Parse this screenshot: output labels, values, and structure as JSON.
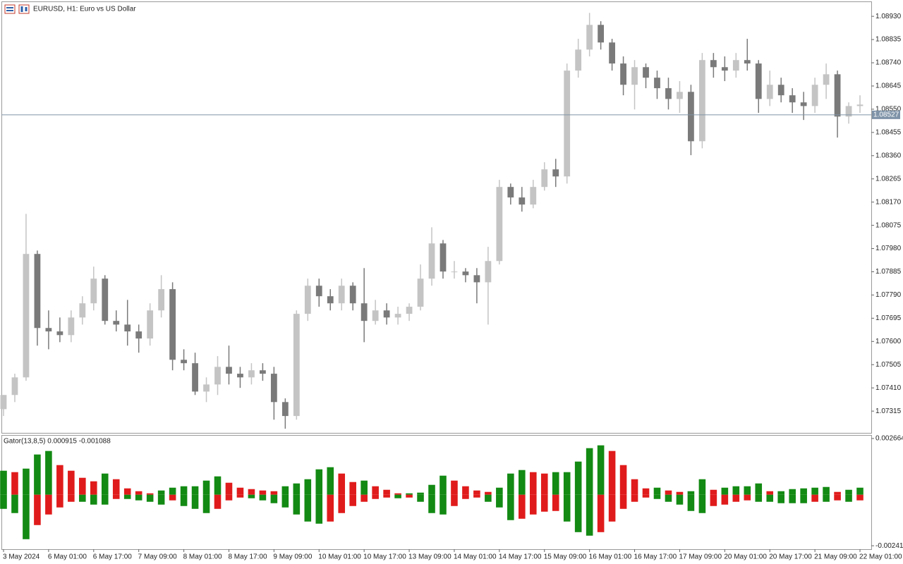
{
  "chart_data": [
    {
      "type": "candlestick",
      "title": "EURUSD, H1:  Euro vs US Dollar",
      "x": [
        0,
        4,
        8,
        12,
        16,
        20,
        24,
        28,
        32,
        36,
        40,
        44,
        48,
        52,
        56,
        60,
        64,
        68,
        72,
        76,
        80,
        84,
        88,
        92,
        96,
        100,
        104,
        108,
        112,
        116,
        120,
        124,
        128,
        132,
        136,
        140,
        144,
        148,
        152,
        156,
        160,
        164,
        168,
        172,
        176,
        180,
        184,
        188,
        192,
        196,
        200,
        204,
        208,
        212,
        216,
        220,
        224,
        228,
        232,
        236,
        240,
        244,
        248,
        252,
        256,
        260,
        264,
        268,
        272,
        276,
        280,
        284,
        288,
        292,
        296,
        300,
        304
      ],
      "open": [
        1.07323,
        1.07381,
        1.07453,
        1.07958,
        1.07655,
        1.07641,
        1.07626,
        1.07698,
        1.07756,
        1.07857,
        1.07684,
        1.07669,
        1.07641,
        1.07612,
        1.07727,
        1.07814,
        1.07525,
        1.07511,
        1.07395,
        1.07424,
        1.07496,
        1.07468,
        1.07453,
        1.07482,
        1.07468,
        1.07352,
        1.07295,
        1.07713,
        1.07828,
        1.07785,
        1.07756,
        1.07828,
        1.07756,
        1.07684,
        1.07727,
        1.07698,
        1.07713,
        1.07742,
        1.07857,
        1.08001,
        1.07886,
        1.07886,
        1.07871,
        1.07842,
        1.07929,
        1.08232,
        1.08189,
        1.0816,
        1.08232,
        1.08304,
        1.08275,
        1.08708,
        1.08794,
        1.08895,
        1.08823,
        1.08737,
        1.0865,
        1.08722,
        1.08679,
        1.08636,
        1.08592,
        1.08621,
        1.08419,
        1.08751,
        1.08722,
        1.08708,
        1.08751,
        1.08737,
        1.08592,
        1.0865,
        1.08607,
        1.08578,
        1.08563,
        1.0865,
        1.08693,
        1.0852,
        1.08563
      ],
      "high": [
        1.07381,
        1.07468,
        1.08122,
        1.07972,
        1.07727,
        1.07698,
        1.07727,
        1.07785,
        1.07906,
        1.07871,
        1.07727,
        1.0777,
        1.07669,
        1.07756,
        1.07871,
        1.07842,
        1.07568,
        1.07554,
        1.07453,
        1.0754,
        1.07583,
        1.07496,
        1.07511,
        1.07511,
        1.07496,
        1.07367,
        1.07727,
        1.07857,
        1.07857,
        1.07814,
        1.07857,
        1.07842,
        1.079,
        1.0777,
        1.07756,
        1.07742,
        1.07756,
        1.07915,
        1.08067,
        1.08015,
        1.07929,
        1.079,
        1.079,
        1.07987,
        1.08261,
        1.08246,
        1.08232,
        1.08261,
        1.08333,
        1.08347,
        1.08737,
        1.08838,
        1.08944,
        1.0891,
        1.08838,
        1.08766,
        1.08751,
        1.08737,
        1.08708,
        1.08679,
        1.08665,
        1.0865,
        1.0878,
        1.0878,
        1.08766,
        1.0878,
        1.08838,
        1.08751,
        1.08708,
        1.08679,
        1.08636,
        1.08621,
        1.08679,
        1.08737,
        1.08708,
        1.08578,
        1.08607
      ],
      "low": [
        1.07295,
        1.07352,
        1.07439,
        1.07583,
        1.07568,
        1.07597,
        1.07597,
        1.07669,
        1.07727,
        1.07669,
        1.07641,
        1.07583,
        1.07554,
        1.07583,
        1.07698,
        1.07482,
        1.07482,
        1.07381,
        1.07352,
        1.07381,
        1.07424,
        1.0741,
        1.07424,
        1.07439,
        1.0728,
        1.07243,
        1.0728,
        1.07684,
        1.07742,
        1.07727,
        1.07727,
        1.07727,
        1.07597,
        1.07669,
        1.07669,
        1.07669,
        1.07684,
        1.07727,
        1.07828,
        1.07857,
        1.07857,
        1.07842,
        1.07756,
        1.07669,
        1.07915,
        1.0816,
        1.08131,
        1.08145,
        1.08217,
        1.08232,
        1.08246,
        1.08679,
        1.08766,
        1.08794,
        1.08708,
        1.08607,
        1.08549,
        1.08636,
        1.08592,
        1.08549,
        1.08535,
        1.08362,
        1.0839,
        1.08679,
        1.08665,
        1.08679,
        1.08708,
        1.08535,
        1.08563,
        1.08578,
        1.08535,
        1.08506,
        1.08535,
        1.08592,
        1.08434,
        1.08491,
        1.08535
      ],
      "close": [
        1.07381,
        1.07453,
        1.07958,
        1.07655,
        1.07641,
        1.07626,
        1.07698,
        1.07756,
        1.07857,
        1.07684,
        1.07669,
        1.07641,
        1.07612,
        1.07727,
        1.07814,
        1.07525,
        1.07511,
        1.07395,
        1.07424,
        1.07496,
        1.07468,
        1.07453,
        1.07482,
        1.07468,
        1.07352,
        1.07295,
        1.07713,
        1.07828,
        1.07785,
        1.07756,
        1.07828,
        1.07756,
        1.07684,
        1.07727,
        1.07698,
        1.07713,
        1.07742,
        1.07857,
        1.08001,
        1.07886,
        1.07886,
        1.07871,
        1.07842,
        1.07929,
        1.08232,
        1.08189,
        1.0816,
        1.08232,
        1.08304,
        1.08275,
        1.08708,
        1.08794,
        1.08895,
        1.08823,
        1.08737,
        1.0865,
        1.08722,
        1.08679,
        1.08636,
        1.08592,
        1.08621,
        1.08419,
        1.08751,
        1.08722,
        1.08708,
        1.08751,
        1.08737,
        1.08592,
        1.0865,
        1.08607,
        1.08578,
        1.08563,
        1.0865,
        1.08693,
        1.0852,
        1.08563,
        1.08569
      ],
      "xlim": [
        -0.75,
        308
      ],
      "xticks": [
        {
          "value": 0,
          "label": "3 May 2024"
        },
        {
          "value": 16,
          "label": "6 May 01:00"
        },
        {
          "value": 32,
          "label": "6 May 17:00"
        },
        {
          "value": 48,
          "label": "7 May 09:00"
        },
        {
          "value": 64,
          "label": "8 May 01:00"
        },
        {
          "value": 80,
          "label": "8 May 17:00"
        },
        {
          "value": 96,
          "label": "9 May 09:00"
        },
        {
          "value": 112,
          "label": "10 May 01:00"
        },
        {
          "value": 128,
          "label": "10 May 17:00"
        },
        {
          "value": 144,
          "label": "13 May 09:00"
        },
        {
          "value": 160,
          "label": "14 May 01:00"
        },
        {
          "value": 176,
          "label": "14 May 17:00"
        },
        {
          "value": 192,
          "label": "15 May 09:00"
        },
        {
          "value": 208,
          "label": "16 May 01:00"
        },
        {
          "value": 224,
          "label": "16 May 17:00"
        },
        {
          "value": 240,
          "label": "17 May 09:00"
        },
        {
          "value": 256,
          "label": "20 May 01:00"
        },
        {
          "value": 272,
          "label": "20 May 17:00"
        },
        {
          "value": 288,
          "label": "21 May 09:00"
        },
        {
          "value": 304,
          "label": "22 May 01:00"
        }
      ],
      "ylim": [
        1.07226,
        1.08991
      ],
      "yticks": [
        1.07315,
        {
          "value": 1.0741,
          "label": "1.07410"
        },
        1.07505,
        {
          "value": 1.076,
          "label": "1.07600"
        },
        1.07695,
        {
          "value": 1.0779,
          "label": "1.07790"
        },
        1.07885,
        {
          "value": 1.0798,
          "label": "1.07980"
        },
        1.08075,
        {
          "value": 1.0817,
          "label": "1.08170"
        },
        1.08265,
        {
          "value": 1.0836,
          "label": "1.08360"
        },
        1.08455,
        {
          "value": 1.0855,
          "label": "1.08550"
        },
        1.08645,
        {
          "value": 1.0874,
          "label": "1.08740"
        },
        1.08835,
        {
          "value": 1.0893,
          "label": "1.08930"
        }
      ],
      "current_price": 1.08527,
      "up_color": "#c4c4c4",
      "down_color": "#7a7a7a",
      "price_line_color": "#7f93a8"
    },
    {
      "type": "gator",
      "title": "Gator(13,8,5) 0.000915 -0.001088",
      "x": [
        0,
        4,
        8,
        12,
        16,
        20,
        24,
        28,
        32,
        36,
        40,
        44,
        48,
        52,
        56,
        60,
        64,
        68,
        72,
        76,
        80,
        84,
        88,
        92,
        96,
        100,
        104,
        108,
        112,
        116,
        120,
        124,
        128,
        132,
        136,
        140,
        144,
        148,
        152,
        156,
        160,
        164,
        168,
        172,
        176,
        180,
        184,
        188,
        192,
        196,
        200,
        204,
        208,
        212,
        216,
        220,
        224,
        228,
        232,
        236,
        240,
        244,
        248,
        252,
        256,
        260,
        264,
        268,
        272,
        276,
        280,
        284,
        288,
        292,
        296,
        300,
        304
      ],
      "upper": [
        0.001137,
        0.00107,
        0.001237,
        0.001906,
        0.002073,
        0.001404,
        0.001137,
        0.000802,
        0.000635,
        0.001003,
        0.000735,
        0.000301,
        0.000167,
        6.7e-05,
        0.000201,
        0.000334,
        0.000401,
        0.000401,
        0.000669,
        0.000869,
        0.000568,
        0.000334,
        0.000267,
        0.000201,
        0.000167,
        0.000401,
        0.000535,
        0.000735,
        0.001203,
        0.001304,
        0.001003,
        0.000602,
        0.000669,
        0.000401,
        0.000234,
        6.7e-05,
        6.7e-05,
        0.0001,
        0.000468,
        0.000903,
        0.000669,
        0.000401,
        0.000201,
        0.000134,
        0.000334,
        0.001003,
        0.00117,
        0.00107,
        0.001003,
        0.00107,
        0.00107,
        0.001571,
        0.002206,
        0.00234,
        0.002073,
        0.001404,
        0.000735,
        0.000301,
        0.000334,
        0.000201,
        0.000134,
        0.000167,
        0.000735,
        0.000234,
        0.000334,
        0.000401,
        0.000401,
        0.000535,
        0.000167,
        0.000167,
        0.000267,
        0.000301,
        0.000334,
        0.000368,
        0.000134,
        0.000234,
        0.000334
      ],
      "lower": [
        -0.000669,
        -0.000869,
        -0.002106,
        -0.001437,
        -0.000936,
        -0.000602,
        -0.000334,
        -0.000334,
        -0.000468,
        -0.000468,
        -0.000201,
        -0.000201,
        -0.000267,
        -0.000334,
        -0.000468,
        -0.000267,
        -0.000535,
        -0.000669,
        -0.000869,
        -0.000669,
        -0.000267,
        -0.000134,
        -0.000167,
        -0.000267,
        -0.000401,
        -0.000602,
        -0.000936,
        -0.00127,
        -0.001371,
        -0.00127,
        -0.000869,
        -0.000535,
        -0.000334,
        -0.000201,
        -0.000134,
        -0.000167,
        -0.000134,
        -0.000334,
        -0.000869,
        -0.000936,
        -0.000535,
        -0.000201,
        -0.000134,
        -0.000334,
        -0.000602,
        -0.001203,
        -0.001137,
        -0.000936,
        -0.000802,
        -0.000769,
        -0.00127,
        -0.001772,
        -0.001939,
        -0.001772,
        -0.00127,
        -0.000669,
        -0.000334,
        -0.000134,
        -0.000201,
        -0.000334,
        -0.000468,
        -0.000769,
        -0.000869,
        -0.000535,
        -0.000468,
        -0.000334,
        -0.000267,
        -0.000334,
        -0.000334,
        -0.000401,
        -0.000401,
        -0.000401,
        -0.000334,
        -0.000334,
        -0.000267,
        -0.000334,
        -0.000267
      ],
      "ylim": [
        -0.00258,
        0.00283
      ],
      "yticks": [
        0.002664,
        -0.002417
      ],
      "increase_color": "#138a13",
      "decrease_color": "#e01b1b"
    }
  ]
}
